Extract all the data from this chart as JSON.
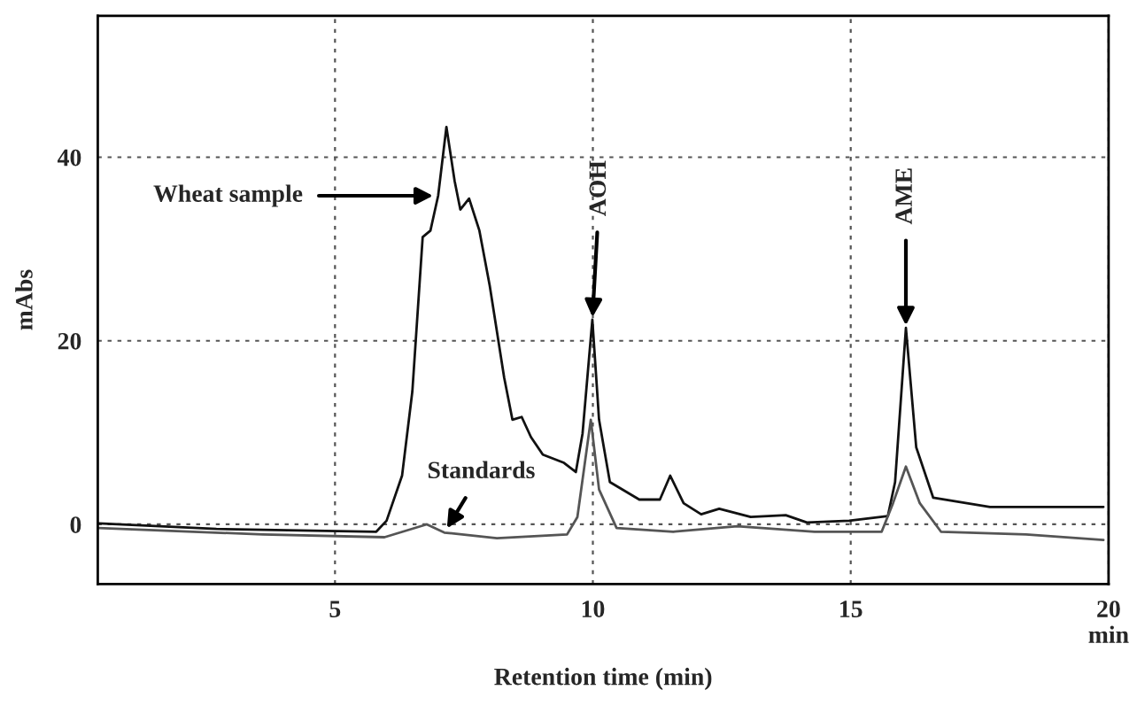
{
  "chart_data": {
    "type": "line",
    "xlabel": "Retention time (min)",
    "ylabel": "mAbs",
    "xlim": [
      0.4,
      20
    ],
    "xticks": [
      5,
      10,
      15,
      {
        "value": 20,
        "label": "20\nmin"
      }
    ],
    "ylim": [
      -6.5,
      55.4
    ],
    "yticks": [
      0,
      20,
      40
    ],
    "grid": true,
    "marker": "none",
    "line_style": "solid",
    "series": [
      {
        "color": "#111111",
        "x": [
          0.42,
          2.7,
          5.8,
          6.0,
          6.3,
          6.5,
          6.7,
          6.85,
          7.0,
          7.16,
          7.32,
          7.43,
          7.6,
          7.8,
          8.0,
          8.28,
          8.44,
          8.62,
          8.8,
          9.03,
          9.44,
          9.67,
          9.8,
          9.99,
          10.12,
          10.33,
          10.9,
          11.3,
          11.5,
          11.76,
          12.1,
          12.45,
          13.06,
          13.74,
          14.15,
          14.97,
          15.72,
          15.86,
          16.07,
          16.27,
          16.6,
          17.7,
          19.9
        ],
        "values": [
          0.1,
          -0.5,
          -0.8,
          0.4,
          5.3,
          14.5,
          31.3,
          32,
          35.8,
          43.3,
          37.4,
          34.3,
          35.5,
          32,
          26,
          16,
          11.4,
          11.7,
          9.5,
          7.6,
          6.7,
          5.7,
          9.9,
          22.3,
          11.4,
          4.6,
          2.7,
          2.7,
          5.3,
          2.3,
          1.1,
          1.7,
          0.8,
          1.0,
          0.2,
          0.4,
          0.9,
          4.6,
          21.4,
          8.4,
          2.9,
          1.9,
          1.9
        ]
      },
      {
        "color": "#555555",
        "x": [
          0.42,
          3.6,
          5.96,
          6.78,
          7.12,
          8.14,
          9.5,
          9.7,
          9.96,
          10.12,
          10.46,
          11.56,
          12.8,
          14.3,
          15.6,
          15.82,
          16.07,
          16.34,
          16.75,
          18.4,
          19.9
        ],
        "values": [
          -0.4,
          -1.1,
          -1.4,
          0,
          -0.9,
          -1.5,
          -1.1,
          0.8,
          11.4,
          3.8,
          -0.4,
          -0.8,
          -0.2,
          -0.8,
          -0.8,
          2.3,
          6.3,
          2.3,
          -0.8,
          -1.1,
          -1.7
        ]
      }
    ],
    "annotations": [
      {
        "text": "Wheat sample",
        "x": 7.0,
        "y": 35.8
      },
      {
        "text": "Standards",
        "x": 7.12,
        "y": -0.9
      },
      {
        "text": "AOH",
        "x": 9.99,
        "y": 22.3
      },
      {
        "text": "AME",
        "x": 16.07,
        "y": 21.4
      }
    ]
  }
}
